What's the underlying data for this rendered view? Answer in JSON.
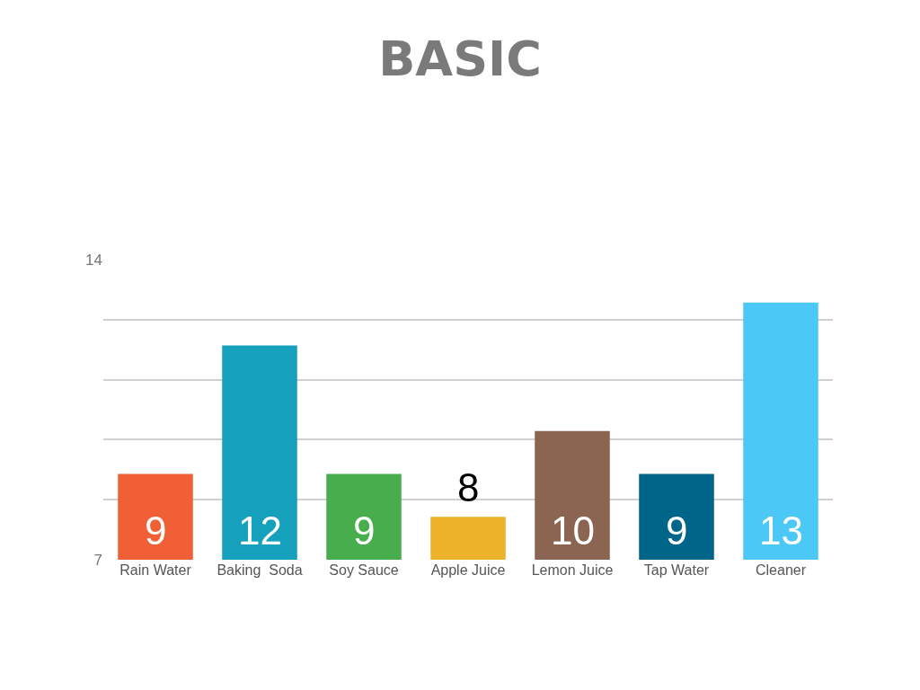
{
  "chart_data": {
    "type": "bar",
    "title": "BASIC",
    "categories": [
      "Rain Water",
      "Baking  Soda",
      "Soy Sauce",
      "Apple Juice",
      "Lemon Juice",
      "Tap Water",
      "Cleaner"
    ],
    "values": [
      9,
      12,
      9,
      8,
      10,
      9,
      13
    ],
    "colors": [
      "#f05f35",
      "#15a0bb",
      "#48ad4c",
      "#ecb22a",
      "#8b6552",
      "#006689",
      "#4cc8f7"
    ],
    "ylim": [
      7,
      14
    ],
    "yticks": [
      7,
      {
        "value": 8.4,
        "label": null
      },
      {
        "value": 9.8,
        "label": null
      },
      {
        "value": 11.2,
        "label": null
      },
      {
        "value": 12.6,
        "label": null
      },
      14
    ],
    "grid": "y",
    "data_labels": true
  }
}
